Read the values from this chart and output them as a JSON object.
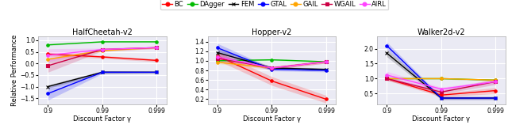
{
  "x_labels": [
    "0.9",
    "0.99",
    "0.999"
  ],
  "xlabel": "Discount Factor γ",
  "ylabel": "Relative Performance",
  "algorithms": [
    "BC",
    "DAgger",
    "FEM",
    "GTAL",
    "GAIL",
    "WGAIL",
    "AIRL"
  ],
  "alg_colors": {
    "BC": "#ff0000",
    "DAgger": "#00bb00",
    "FEM": "#000000",
    "GTAL": "#0000ff",
    "GAIL": "#ffa500",
    "WGAIL": "#cc0044",
    "AIRL": "#ff44ff"
  },
  "alg_markers": {
    "BC": "o",
    "DAgger": "o",
    "FEM": "x",
    "GTAL": "o",
    "GAIL": "o",
    "WGAIL": "s",
    "AIRL": "o"
  },
  "plots": {
    "HalfCheetah-v2": {
      "means": {
        "BC": [
          0.4,
          0.28,
          0.13
        ],
        "DAgger": [
          0.8,
          0.93,
          0.93
        ],
        "FEM": [
          -1.0,
          -0.38,
          -0.38
        ],
        "GTAL": [
          -1.3,
          -0.38,
          -0.38
        ],
        "GAIL": [
          0.18,
          0.55,
          0.68
        ],
        "WGAIL": [
          -0.1,
          0.6,
          0.68
        ],
        "AIRL": [
          0.35,
          0.6,
          0.68
        ]
      },
      "stds": {
        "BC": [
          0.08,
          0.06,
          0.06
        ],
        "DAgger": [
          0.03,
          0.02,
          0.02
        ],
        "FEM": [
          0.07,
          0.06,
          0.04
        ],
        "GTAL": [
          0.28,
          0.06,
          0.04
        ],
        "GAIL": [
          0.04,
          0.04,
          0.04
        ],
        "WGAIL": [
          0.28,
          0.06,
          0.04
        ],
        "AIRL": [
          0.28,
          0.06,
          0.04
        ]
      },
      "ylim": [
        -1.75,
        1.15
      ],
      "yticks": [
        -1.5,
        -1.0,
        -0.5,
        0.0,
        0.5,
        1.0
      ]
    },
    "Hopper-v2": {
      "means": {
        "BC": [
          1.1,
          0.58,
          0.2
        ],
        "DAgger": [
          1.0,
          1.02,
          0.98
        ],
        "FEM": [
          1.17,
          0.85,
          0.82
        ],
        "GTAL": [
          1.27,
          0.82,
          0.8
        ],
        "GAIL": [
          0.97,
          0.85,
          0.98
        ],
        "WGAIL": [
          1.05,
          0.85,
          0.98
        ],
        "AIRL": [
          1.08,
          0.85,
          0.98
        ]
      },
      "stds": {
        "BC": [
          0.09,
          0.09,
          0.08
        ],
        "DAgger": [
          0.02,
          0.02,
          0.02
        ],
        "FEM": [
          0.08,
          0.03,
          0.03
        ],
        "GTAL": [
          0.09,
          0.03,
          0.03
        ],
        "GAIL": [
          0.03,
          0.03,
          0.03
        ],
        "WGAIL": [
          0.03,
          0.03,
          0.03
        ],
        "AIRL": [
          0.09,
          0.03,
          0.03
        ]
      },
      "ylim": [
        0.1,
        1.5
      ],
      "yticks": [
        0.2,
        0.4,
        0.6,
        0.8,
        1.0,
        1.2,
        1.4
      ]
    },
    "Walker2d-v2": {
      "means": {
        "BC": [
          1.0,
          0.45,
          0.6
        ],
        "DAgger": [
          1.0,
          1.0,
          0.95
        ],
        "FEM": [
          1.85,
          0.35,
          0.35
        ],
        "GTAL": [
          2.1,
          0.35,
          0.35
        ],
        "GAIL": [
          1.0,
          1.0,
          0.95
        ],
        "WGAIL": [
          1.0,
          0.55,
          0.9
        ],
        "AIRL": [
          1.12,
          0.65,
          0.9
        ]
      },
      "stds": {
        "BC": [
          0.05,
          0.06,
          0.1
        ],
        "DAgger": [
          0.02,
          0.02,
          0.02
        ],
        "FEM": [
          0.12,
          0.05,
          0.05
        ],
        "GTAL": [
          0.12,
          0.05,
          0.05
        ],
        "GAIL": [
          0.02,
          0.02,
          0.02
        ],
        "WGAIL": [
          0.06,
          0.06,
          0.1
        ],
        "AIRL": [
          0.12,
          0.06,
          0.06
        ]
      },
      "ylim": [
        0.15,
        2.4
      ],
      "yticks": [
        0.5,
        1.0,
        1.5,
        2.0
      ]
    }
  },
  "bg_color": "#eaeaf4",
  "grid_color": "#ffffff"
}
